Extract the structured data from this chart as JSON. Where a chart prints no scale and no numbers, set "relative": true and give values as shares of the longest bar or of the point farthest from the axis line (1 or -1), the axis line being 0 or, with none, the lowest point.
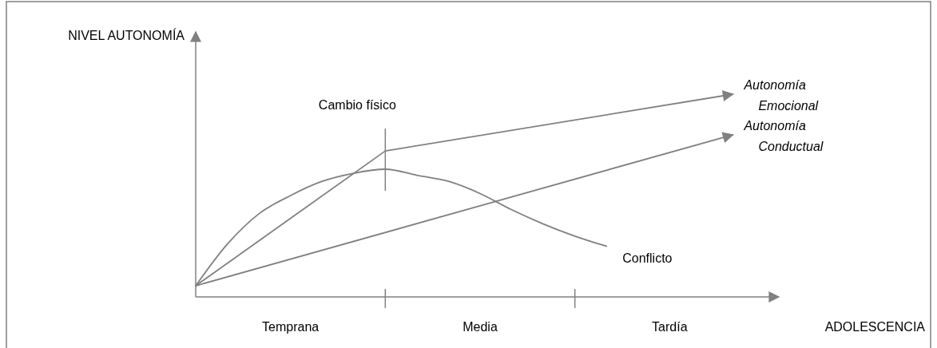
{
  "chart_data": {
    "type": "line",
    "relative": true,
    "xlabel": "ADOLESCENCIA",
    "ylabel": "NIVEL AUTONOMÍA",
    "categories": [
      null,
      null,
      null,
      "Temprana",
      null,
      null,
      null,
      null,
      null,
      "Media",
      null,
      null,
      null,
      null,
      null,
      "Tardía",
      null,
      null,
      null
    ],
    "legend": false,
    "marker": "none",
    "line_style": "solid",
    "series": [
      {
        "name": "Autonomía Emocional",
        "color": "#808080",
        "values": [
          0.055,
          null,
          null,
          null,
          null,
          null,
          0.72,
          null,
          null,
          null,
          null,
          null,
          null,
          null,
          null,
          null,
          null,
          1,
          null
        ]
      },
      {
        "name": "Autonomía Conductual",
        "color": "#808080",
        "values": [
          0.055,
          null,
          null,
          null,
          null,
          null,
          null,
          null,
          null,
          null,
          null,
          null,
          null,
          null,
          null,
          null,
          null,
          0.8,
          null
        ]
      },
      {
        "name": "Conflicto",
        "color": "#808080",
        "values": [
          0.055,
          0.26,
          0.41,
          0.5,
          0.57,
          0.61,
          0.63,
          0.6,
          0.57,
          0.51,
          0.43,
          0.36,
          0.3,
          0.25,
          null,
          null,
          null,
          null,
          null
        ]
      }
    ],
    "annotations": [
      "Cambio físico"
    ]
  }
}
